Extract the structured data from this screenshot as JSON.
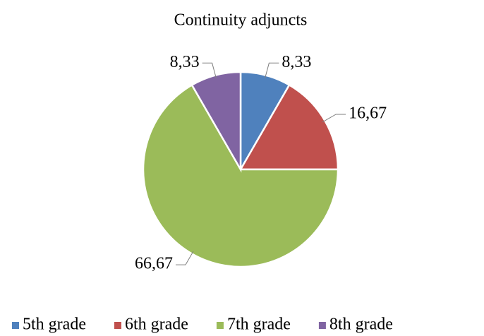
{
  "chart_data": {
    "type": "pie",
    "title": "Continuity adjuncts",
    "categories": [
      "5th grade",
      "6th grade",
      "7th grade",
      "8th grade"
    ],
    "values": [
      8.33,
      16.67,
      66.67,
      8.33
    ],
    "value_labels": [
      "8,33",
      "16,67",
      "66,67",
      "8,33"
    ],
    "colors": [
      "#4f81bd",
      "#c0504d",
      "#9bbb59",
      "#8064a2"
    ],
    "legend": "bottom"
  }
}
